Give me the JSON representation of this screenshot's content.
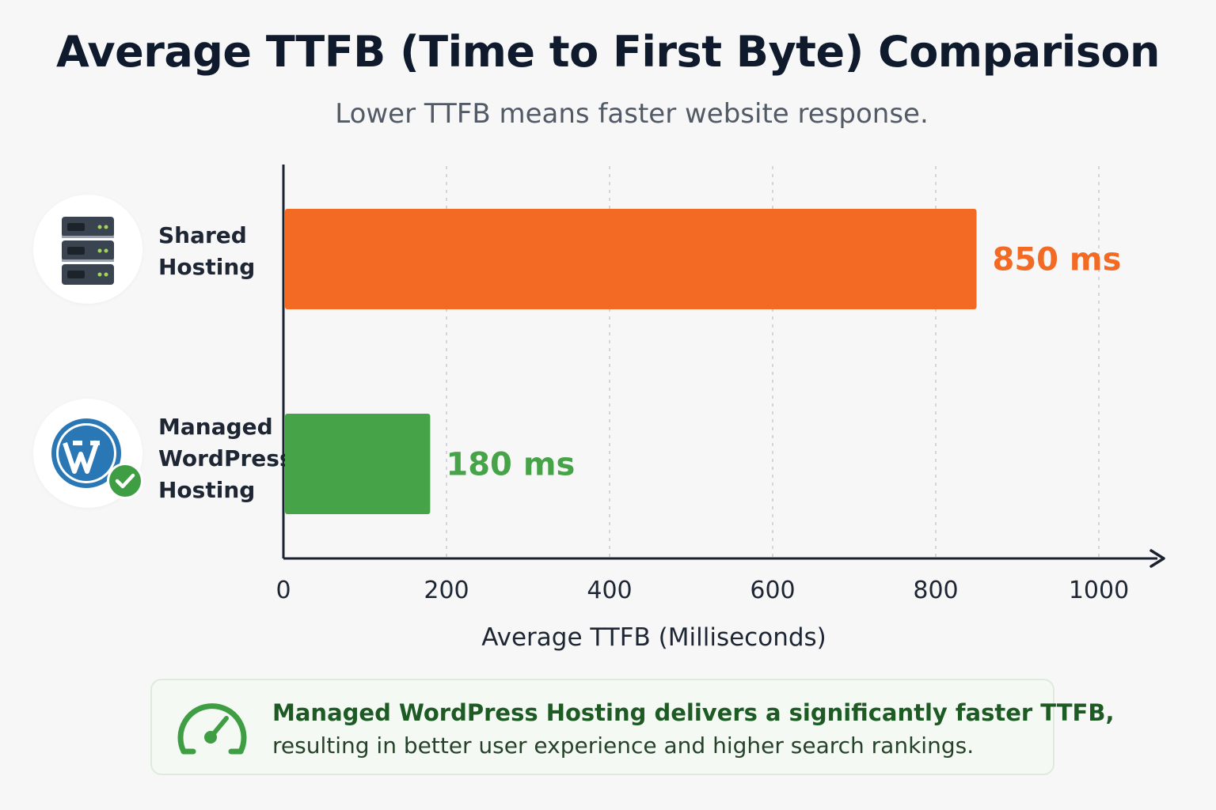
{
  "header": {
    "title": "Average TTFB (Time to First Byte) Comparison",
    "subtitle": "Lower TTFB means faster website response."
  },
  "categories_display": [
    {
      "label": "Shared\nHosting",
      "icon": "server-rack-icon"
    },
    {
      "label": "Managed\nWordPress\nHosting",
      "icon": "wordpress-check-icon"
    }
  ],
  "chart_data": {
    "type": "bar",
    "orientation": "horizontal",
    "categories": [
      "Shared Hosting",
      "Managed WordPress Hosting"
    ],
    "values": [
      850,
      180
    ],
    "value_labels": [
      "850 ms",
      "180 ms"
    ],
    "colors": [
      "#f26a24",
      "#46a347"
    ],
    "xlabel": "Average TTFB (Milliseconds)",
    "xlim": [
      0,
      1000
    ],
    "x_ticks": [
      0,
      200,
      400,
      600,
      800,
      1000
    ],
    "grid": "vertical dashed"
  },
  "footer": {
    "line1": "Managed WordPress Hosting delivers a significantly faster TTFB,",
    "line2": "resulting in better user experience and higher search rankings.",
    "icon": "speedometer-icon",
    "accent": "#46a347"
  }
}
